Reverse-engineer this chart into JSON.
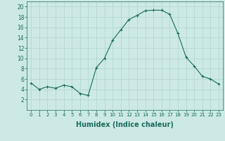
{
  "x": [
    0,
    1,
    2,
    3,
    4,
    5,
    6,
    7,
    8,
    9,
    10,
    11,
    12,
    13,
    14,
    15,
    16,
    17,
    18,
    19,
    20,
    21,
    22,
    23
  ],
  "y": [
    5.2,
    4.0,
    4.5,
    4.2,
    4.8,
    4.5,
    3.2,
    2.8,
    8.2,
    10.0,
    13.5,
    15.5,
    17.5,
    18.3,
    19.2,
    19.3,
    19.3,
    18.5,
    14.8,
    10.2,
    8.5,
    6.5,
    6.0,
    5.0
  ],
  "xlabel": "Humidex (Indice chaleur)",
  "xlim": [
    -0.5,
    23.5
  ],
  "ylim": [
    0,
    21
  ],
  "yticks": [
    2,
    4,
    6,
    8,
    10,
    12,
    14,
    16,
    18,
    20
  ],
  "xticks": [
    0,
    1,
    2,
    3,
    4,
    5,
    6,
    7,
    8,
    9,
    10,
    11,
    12,
    13,
    14,
    15,
    16,
    17,
    18,
    19,
    20,
    21,
    22,
    23
  ],
  "line_color": "#1a6b5a",
  "marker": "+",
  "bg_color": "#cce9e5",
  "grid_color": "#b0d4cf",
  "spine_color": "#1a6b5a",
  "tick_color": "#1a6b5a",
  "label_color": "#1a6b5a"
}
